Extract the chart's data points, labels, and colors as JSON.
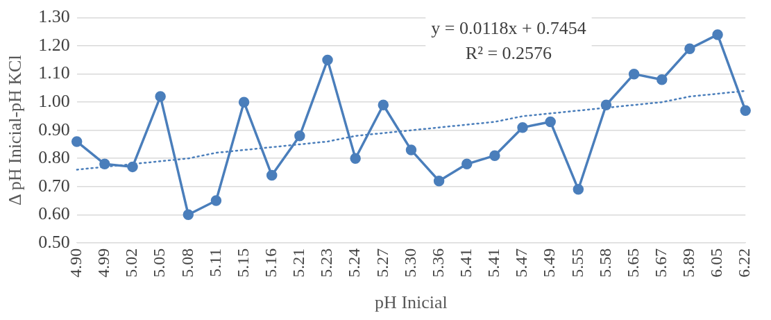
{
  "chart_data": {
    "type": "line",
    "xlabel": "pH Inicial",
    "ylabel": "Δ pH Inicial-pH KCl",
    "categories": [
      "4.90",
      "4.99",
      "5.02",
      "5.05",
      "5.08",
      "5.11",
      "5.15",
      "5.16",
      "5.21",
      "5.23",
      "5.24",
      "5.27",
      "5.30",
      "5.36",
      "5.41",
      "5.41",
      "5.47",
      "5.49",
      "5.55",
      "5.58",
      "5.65",
      "5.67",
      "5.89",
      "6.05",
      "6.22"
    ],
    "series": [
      {
        "color": "#4a7ebb",
        "marker": "circle",
        "line_style": "solid",
        "values": [
          0.86,
          0.78,
          0.77,
          1.02,
          0.6,
          0.65,
          1.0,
          0.74,
          0.88,
          1.15,
          0.8,
          0.99,
          0.83,
          0.72,
          0.78,
          0.81,
          0.91,
          0.93,
          0.69,
          0.99,
          1.1,
          1.08,
          1.19,
          1.24,
          0.97
        ]
      },
      {
        "type": "line",
        "color": "#4a7ebb",
        "marker": "none",
        "line_style": "dotted",
        "values": [
          0.76,
          0.77,
          0.78,
          0.79,
          0.8,
          0.82,
          0.83,
          0.84,
          0.85,
          0.86,
          0.88,
          0.89,
          0.9,
          0.91,
          0.92,
          0.93,
          0.95,
          0.96,
          0.97,
          0.98,
          0.99,
          1.0,
          1.02,
          1.03,
          1.04
        ]
      }
    ],
    "ylim": [
      0.5,
      1.3
    ],
    "yticks": [
      {
        "value": 0.5,
        "label": "0.50"
      },
      {
        "value": 0.6,
        "label": "0.60"
      },
      {
        "value": 0.7,
        "label": "0.70"
      },
      {
        "value": 0.8,
        "label": "0.80"
      },
      {
        "value": 0.9,
        "label": "0.90"
      },
      {
        "value": 1.0,
        "label": "1.00"
      },
      {
        "value": 1.1,
        "label": "1.10"
      },
      {
        "value": 1.2,
        "label": "1.20"
      },
      {
        "value": 1.3,
        "label": "1.30"
      }
    ],
    "grid": "y",
    "legend": false,
    "annotations": [
      "y = 0.0118x + 0.7454",
      "R² = 0.2576"
    ]
  }
}
